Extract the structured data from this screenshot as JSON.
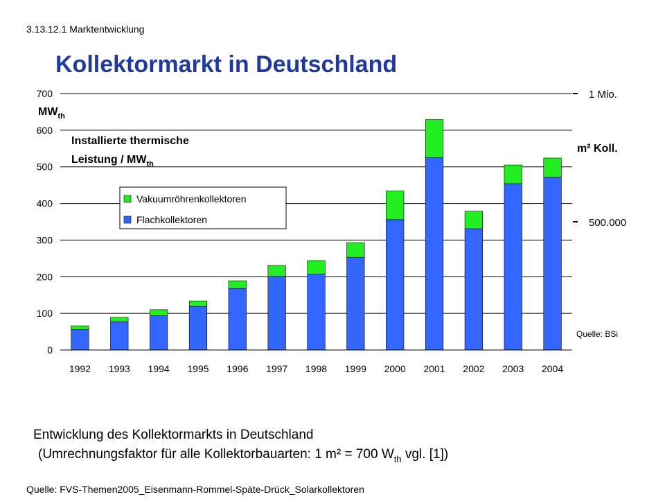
{
  "header": "3.13.12.1 Marktentwicklung",
  "chart_data": {
    "type": "stacked_bar",
    "title": "Kollektormarkt in Deutschland",
    "y_label": {
      "text": "MW",
      "sub": "th"
    },
    "y2_label": "m² Koll.",
    "annotation": {
      "line1": "Installierte thermische",
      "line2": "Leistung / MW",
      "sub": "th"
    },
    "source": "Quelle: BSi",
    "categories": [
      "1992",
      "1993",
      "1994",
      "1995",
      "1996",
      "1997",
      "1998",
      "1999",
      "2000",
      "2001",
      "2002",
      "2003",
      "2004"
    ],
    "series": [
      {
        "name": "Flachkollektoren",
        "color": "#3366ff",
        "values": [
          56,
          77,
          94,
          119,
          168,
          201,
          207,
          253,
          356,
          525,
          331,
          454,
          471
        ]
      },
      {
        "name": "Vakuumröhrenkollektoren",
        "color": "#22ee22",
        "values": [
          10,
          12,
          16,
          15,
          21,
          30,
          37,
          40,
          78,
          104,
          48,
          51,
          53
        ]
      }
    ],
    "ylim": [
      0,
      700
    ],
    "yticks": [
      0,
      100,
      200,
      300,
      400,
      500,
      600,
      700
    ],
    "y2lim": [
      0,
      1000000
    ],
    "y2ticks": [
      {
        "value": 500000,
        "label": "500.000"
      },
      {
        "value": 1000000,
        "label": "1 Mio."
      }
    ],
    "grid": true
  },
  "caption": {
    "line1": "Entwicklung des Kollektormarkts in Deutschland",
    "line2": "(Umrechnungsfaktor für alle Kollektorbauarten:  1 m² = 700 W",
    "line2_sub": "th",
    "line2_end": "  vgl. [1])"
  },
  "footer": "Quelle: FVS-Themen2005_Eisenmann-Rommel-Späte-Drück_Solarkollektoren"
}
